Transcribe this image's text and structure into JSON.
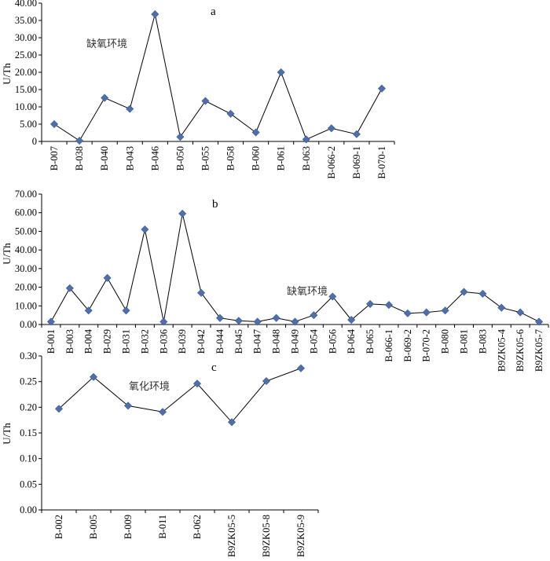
{
  "chart_data": [
    {
      "type": "line",
      "panel_label": "a",
      "ylabel": "U/Th",
      "ylim": [
        0,
        40
      ],
      "yticks": [
        "0",
        "5.00",
        "10.00",
        "15.00",
        "20.00",
        "25.00",
        "30.00",
        "35.00",
        "40.00"
      ],
      "annotation": "缺氧环境",
      "categories": [
        "B-007",
        "B-038",
        "B-040",
        "B-043",
        "B-046",
        "B-050",
        "B-055",
        "B-058",
        "B-060",
        "B-061",
        "B-063",
        "B-066-2",
        "B-069-1",
        "B-070-1"
      ],
      "values": [
        5.0,
        0.2,
        12.6,
        9.4,
        36.8,
        1.3,
        11.7,
        8.0,
        2.6,
        20.0,
        0.6,
        3.8,
        2.1,
        15.3
      ],
      "marker": "diamond",
      "colors": {
        "marker": "#4f6fa8",
        "line": "#000000"
      }
    },
    {
      "type": "line",
      "panel_label": "b",
      "ylabel": "U/Th",
      "ylim": [
        0,
        70
      ],
      "yticks": [
        "0.00",
        "10.00",
        "20.00",
        "30.00",
        "40.00",
        "50.00",
        "60.00",
        "70.00"
      ],
      "annotation": "缺氧环境",
      "categories": [
        "B-001",
        "B-003",
        "B-004",
        "B-029",
        "B-031",
        "B-032",
        "B-036",
        "B-039",
        "B-042",
        "B-044",
        "B-045",
        "B-047",
        "B-048",
        "B-049",
        "B-054",
        "B-056",
        "B-064",
        "B-065",
        "B-066-1",
        "B-069-2",
        "B-070-2",
        "B-080",
        "B-081",
        "B-083",
        "B9ZK05-4",
        "B9ZK05-6",
        "B9ZK05-7"
      ],
      "values": [
        1.5,
        19.5,
        7.5,
        25.0,
        7.5,
        51.0,
        1.5,
        59.5,
        17.0,
        3.5,
        2.0,
        1.5,
        3.5,
        1.5,
        5.0,
        15.0,
        2.5,
        11.0,
        10.5,
        6.0,
        6.5,
        7.5,
        17.5,
        16.5,
        9.0,
        6.5,
        1.5
      ],
      "marker": "diamond",
      "colors": {
        "marker": "#4f6fa8",
        "line": "#000000"
      }
    },
    {
      "type": "line",
      "panel_label": "c",
      "ylabel": "U/Th",
      "ylim": [
        0,
        0.3
      ],
      "yticks": [
        "0.00",
        "0.05",
        "0.10",
        "0.15",
        "0.20",
        "0.25",
        "0.30"
      ],
      "annotation": "氧化环境",
      "categories": [
        "B-002",
        "B-005",
        "B-009",
        "B-011",
        "B-062",
        "B9ZK05-5",
        "B9ZK05-8",
        "B9ZK05-9"
      ],
      "values": [
        0.197,
        0.259,
        0.203,
        0.191,
        0.246,
        0.171,
        0.251,
        0.276
      ],
      "marker": "diamond",
      "colors": {
        "marker": "#4f6fa8",
        "line": "#000000"
      }
    }
  ]
}
